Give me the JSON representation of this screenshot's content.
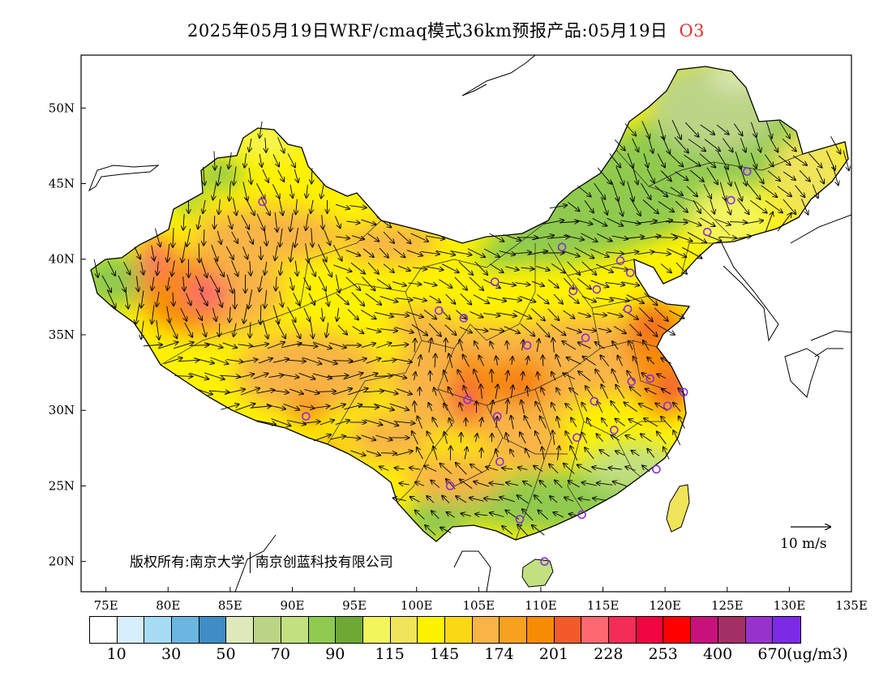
{
  "title": {
    "main": "2025年05月19日WRF/cmaq模式36km预报产品:05月19日",
    "species": "O3"
  },
  "map": {
    "lon_ticks": [
      "75E",
      "80E",
      "85E",
      "90E",
      "95E",
      "100E",
      "105E",
      "110E",
      "115E",
      "120E",
      "125E",
      "130E",
      "135E"
    ],
    "lat_ticks": [
      "20N",
      "25N",
      "30N",
      "35N",
      "40N",
      "45N",
      "50N"
    ],
    "lon_range": [
      73,
      135
    ],
    "lat_range": [
      18,
      53.5
    ],
    "copyright_prefix": "版权所有:",
    "org1": "南京大学",
    "org2": "南京创蓝科技有限公司",
    "wind_ref_label": "10 m/s"
  },
  "colorbar": {
    "colors": [
      "#ffffff",
      "#d6effb",
      "#a8dcf5",
      "#6bb5e0",
      "#3f8cc6",
      "#dde9bb",
      "#bcd486",
      "#c2e080",
      "#8fca50",
      "#6ea935",
      "#f3f55d",
      "#f0e45a",
      "#fff200",
      "#fbd815",
      "#f8b446",
      "#f7a11e",
      "#f88b04",
      "#f15b2b",
      "#fe6870",
      "#f32d57",
      "#f10542",
      "#ff0000",
      "#c8127b",
      "#a33064",
      "#9733cc",
      "#7d2ae6"
    ],
    "labels": [
      "10",
      "30",
      "50",
      "70",
      "90",
      "115",
      "145",
      "174",
      "201",
      "228",
      "253",
      "400",
      "670"
    ],
    "unit": "(ug/m3)"
  },
  "stations": [
    {
      "lon": 87.6,
      "lat": 43.8
    },
    {
      "lon": 91.1,
      "lat": 29.6
    },
    {
      "lon": 101.8,
      "lat": 36.6
    },
    {
      "lon": 103.8,
      "lat": 36.1
    },
    {
      "lon": 106.3,
      "lat": 38.5
    },
    {
      "lon": 111.7,
      "lat": 40.8
    },
    {
      "lon": 112.6,
      "lat": 37.9
    },
    {
      "lon": 114.5,
      "lat": 38.0
    },
    {
      "lon": 116.4,
      "lat": 39.9
    },
    {
      "lon": 117.2,
      "lat": 39.1
    },
    {
      "lon": 117.0,
      "lat": 36.7
    },
    {
      "lon": 113.6,
      "lat": 34.8
    },
    {
      "lon": 108.9,
      "lat": 34.3
    },
    {
      "lon": 104.1,
      "lat": 30.7
    },
    {
      "lon": 106.5,
      "lat": 29.6
    },
    {
      "lon": 114.3,
      "lat": 30.6
    },
    {
      "lon": 112.9,
      "lat": 28.2
    },
    {
      "lon": 115.9,
      "lat": 28.7
    },
    {
      "lon": 117.3,
      "lat": 31.9
    },
    {
      "lon": 118.8,
      "lat": 32.1
    },
    {
      "lon": 121.5,
      "lat": 31.2
    },
    {
      "lon": 120.2,
      "lat": 30.3
    },
    {
      "lon": 119.3,
      "lat": 26.1
    },
    {
      "lon": 113.3,
      "lat": 23.1
    },
    {
      "lon": 108.3,
      "lat": 22.8
    },
    {
      "lon": 110.3,
      "lat": 20.0
    },
    {
      "lon": 106.7,
      "lat": 26.6
    },
    {
      "lon": 102.7,
      "lat": 25.0
    },
    {
      "lon": 123.4,
      "lat": 41.8
    },
    {
      "lon": 125.3,
      "lat": 43.9
    },
    {
      "lon": 126.6,
      "lat": 45.8
    }
  ]
}
